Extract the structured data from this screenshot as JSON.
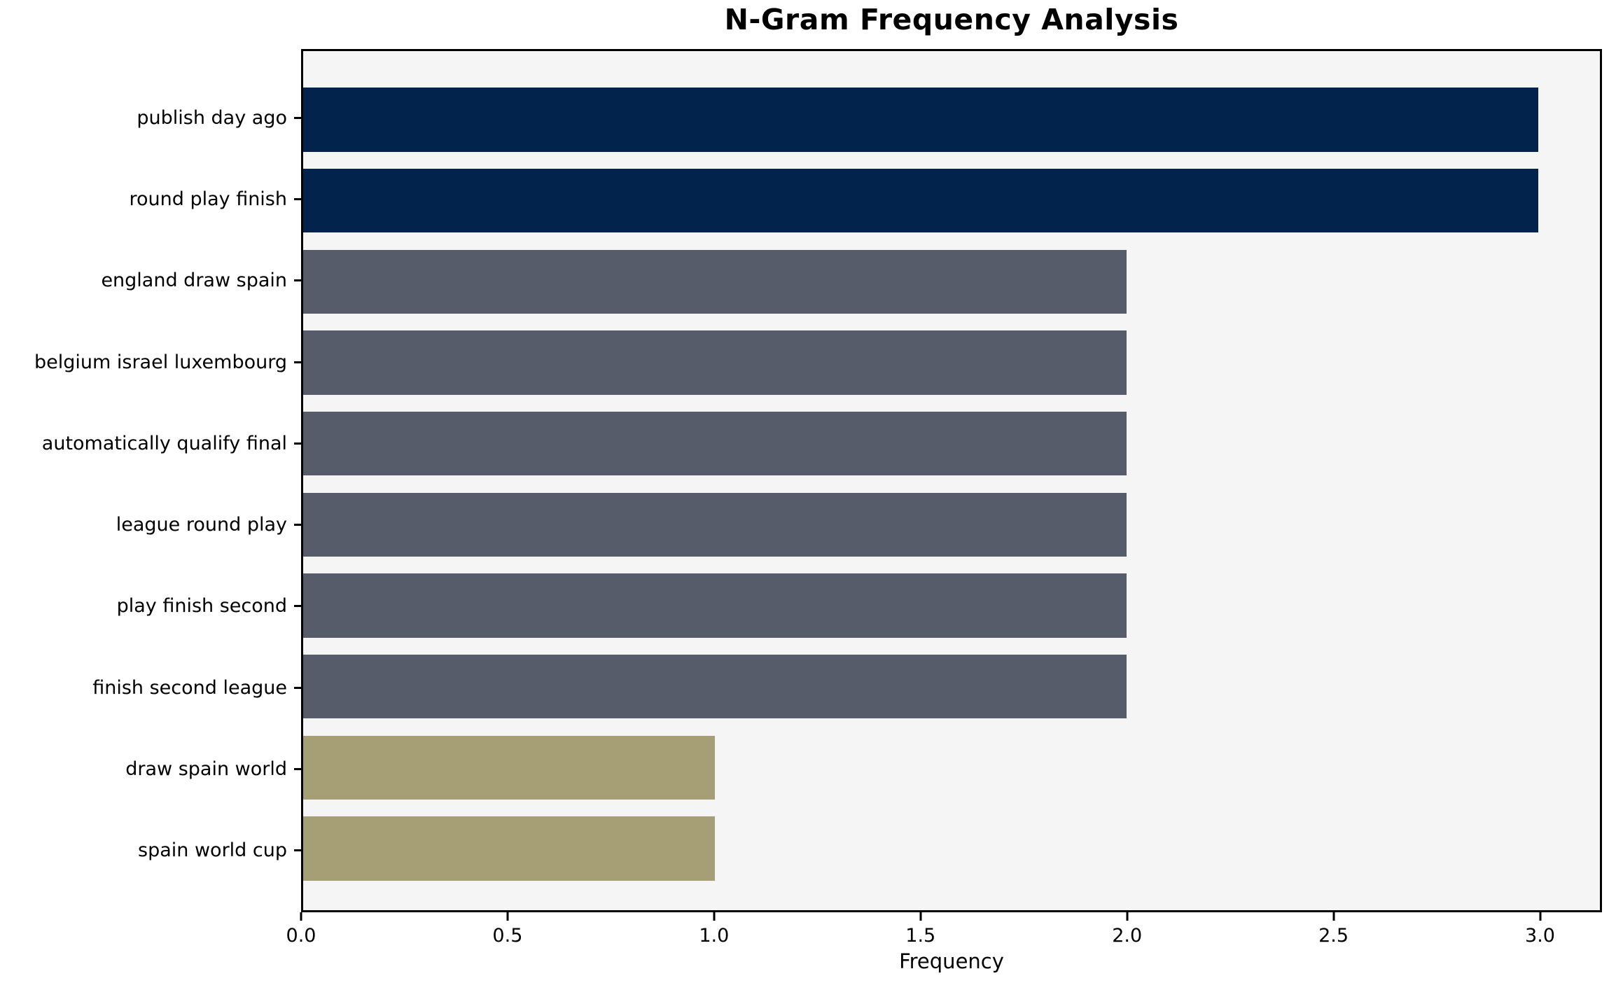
{
  "chart_data": {
    "type": "bar",
    "orientation": "horizontal",
    "title": "N-Gram Frequency Analysis",
    "xlabel": "Frequency",
    "ylabel": "",
    "categories": [
      "publish day ago",
      "round play finish",
      "england draw spain",
      "belgium israel luxembourg",
      "automatically qualify final",
      "league round play",
      "play finish second",
      "finish second league",
      "draw spain world",
      "spain world cup"
    ],
    "values": [
      3,
      3,
      2,
      2,
      2,
      2,
      2,
      2,
      1,
      1
    ],
    "bar_colors": [
      "#02234c",
      "#02234c",
      "#565c6a",
      "#565c6a",
      "#565c6a",
      "#565c6a",
      "#565c6a",
      "#565c6a",
      "#a69e74",
      "#a69e74"
    ],
    "xlim": [
      0,
      3.15
    ],
    "xticks": [
      0.0,
      0.5,
      1.0,
      1.5,
      2.0,
      2.5,
      3.0
    ],
    "xtick_labels": [
      "0.0",
      "0.5",
      "1.0",
      "1.5",
      "2.0",
      "2.5",
      "3.0"
    ],
    "grid": false,
    "legend_position": "none",
    "colors": {
      "value_3": "#02234c",
      "value_2": "#565c6a",
      "value_1": "#a69e74",
      "plot_background": "#f5f5f6",
      "figure_background": "#ffffff",
      "spine": "#000000",
      "text": "#000000"
    }
  }
}
